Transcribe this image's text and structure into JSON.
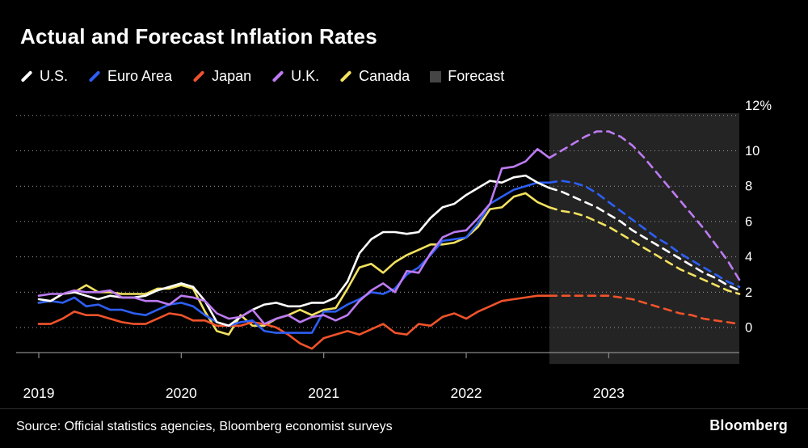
{
  "title": "Actual and Forecast Inflation Rates",
  "source_note": "Source: Official statistics agencies, Bloomberg economist surveys",
  "brand": "Bloomberg",
  "colors": {
    "background": "#000000",
    "text": "#ffffff",
    "grid": "#9a9a9a",
    "axis": "#8a8a8a",
    "forecast_region": "rgba(255,255,255,0.14)"
  },
  "legend": [
    {
      "id": "us",
      "label": "U.S.",
      "color": "#ffffff",
      "swatch": "line"
    },
    {
      "id": "euro-area",
      "label": "Euro Area",
      "color": "#2d5ff5",
      "swatch": "line"
    },
    {
      "id": "japan",
      "label": "Japan",
      "color": "#f0532a",
      "swatch": "line"
    },
    {
      "id": "uk",
      "label": "U.K.",
      "color": "#bd7bf2",
      "swatch": "line"
    },
    {
      "id": "canada",
      "label": "Canada",
      "color": "#f3e25f",
      "swatch": "line"
    },
    {
      "id": "forecast",
      "label": "Forecast",
      "color": "#454545",
      "swatch": "box"
    }
  ],
  "chart_data": {
    "type": "line",
    "title": "Actual and Forecast Inflation Rates",
    "unit": "percent, year-over-year",
    "x_range": [
      "2019-01",
      "2023-12"
    ],
    "x_tick_labels": [
      "2019",
      "2020",
      "2021",
      "2022",
      "2023"
    ],
    "y_ticks": [
      12,
      10,
      8,
      6,
      4,
      2,
      0
    ],
    "y_tick_labels": [
      "12%",
      "10",
      "8",
      "6",
      "4",
      "2",
      "0"
    ],
    "ylim": [
      -1.6,
      12.4
    ],
    "grid": "dotted-horizontal",
    "legend_position": "top",
    "forecast_start_index": 43,
    "forecast_note": "Values from index 43 (Aug 2022) onward are forecasts, drawn dashed over shaded region",
    "series": [
      {
        "id": "us",
        "name": "U.S.",
        "color": "#ffffff",
        "values": [
          1.6,
          1.5,
          1.9,
          2.0,
          1.8,
          1.6,
          1.8,
          1.7,
          1.7,
          1.8,
          2.1,
          2.3,
          2.5,
          2.3,
          1.5,
          0.3,
          0.1,
          0.6,
          1.0,
          1.3,
          1.4,
          1.2,
          1.2,
          1.4,
          1.4,
          1.7,
          2.6,
          4.2,
          5.0,
          5.4,
          5.4,
          5.3,
          5.4,
          6.2,
          6.8,
          7.0,
          7.5,
          7.9,
          8.3,
          8.2,
          8.5,
          8.6,
          8.2,
          7.9,
          7.7,
          7.4,
          7.1,
          6.8,
          6.4,
          6.0,
          5.5,
          5.1,
          4.7,
          4.3,
          3.9,
          3.5,
          3.1,
          2.8,
          2.4,
          2.1
        ]
      },
      {
        "id": "euro-area",
        "name": "Euro Area",
        "color": "#2d5ff5",
        "values": [
          1.4,
          1.5,
          1.4,
          1.7,
          1.2,
          1.3,
          1.0,
          1.0,
          0.8,
          0.7,
          1.0,
          1.3,
          1.4,
          1.2,
          0.7,
          0.3,
          0.1,
          0.3,
          0.4,
          -0.2,
          -0.3,
          -0.3,
          -0.3,
          -0.3,
          0.9,
          0.9,
          1.3,
          1.6,
          2.0,
          1.9,
          2.2,
          3.0,
          3.4,
          4.1,
          4.9,
          5.0,
          5.1,
          5.9,
          7.0,
          7.4,
          7.8,
          8.0,
          8.2,
          8.2,
          8.3,
          8.2,
          8.0,
          7.6,
          7.1,
          6.6,
          6.1,
          5.6,
          5.1,
          4.7,
          4.2,
          3.8,
          3.4,
          3.0,
          2.6,
          2.3
        ]
      },
      {
        "id": "japan",
        "name": "Japan",
        "color": "#f0532a",
        "values": [
          0.2,
          0.2,
          0.5,
          0.9,
          0.7,
          0.7,
          0.5,
          0.3,
          0.2,
          0.2,
          0.5,
          0.8,
          0.7,
          0.4,
          0.4,
          0.1,
          0.1,
          0.1,
          0.3,
          0.2,
          0.0,
          -0.4,
          -0.9,
          -1.2,
          -0.6,
          -0.4,
          -0.2,
          -0.4,
          -0.1,
          0.2,
          -0.3,
          -0.4,
          0.2,
          0.1,
          0.6,
          0.8,
          0.5,
          0.9,
          1.2,
          1.5,
          1.6,
          1.7,
          1.8,
          1.8,
          1.8,
          1.8,
          1.8,
          1.8,
          1.8,
          1.7,
          1.6,
          1.4,
          1.2,
          1.0,
          0.8,
          0.7,
          0.5,
          0.4,
          0.3,
          0.2
        ]
      },
      {
        "id": "uk",
        "name": "U.K.",
        "color": "#bd7bf2",
        "values": [
          1.8,
          1.9,
          1.9,
          2.1,
          2.0,
          2.0,
          2.1,
          1.7,
          1.7,
          1.5,
          1.5,
          1.3,
          1.8,
          1.7,
          1.5,
          0.8,
          0.5,
          0.6,
          1.0,
          0.2,
          0.5,
          0.7,
          0.3,
          0.6,
          0.7,
          0.4,
          0.7,
          1.5,
          2.1,
          2.5,
          2.0,
          3.2,
          3.1,
          4.2,
          5.1,
          5.4,
          5.5,
          6.2,
          7.0,
          9.0,
          9.1,
          9.4,
          10.1,
          9.6,
          10.0,
          10.4,
          10.8,
          11.1,
          11.1,
          10.8,
          10.3,
          9.6,
          8.8,
          8.0,
          7.2,
          6.4,
          5.6,
          4.7,
          3.8,
          2.7
        ]
      },
      {
        "id": "canada",
        "name": "Canada",
        "color": "#f3e25f",
        "values": [
          1.4,
          1.5,
          1.9,
          2.0,
          2.4,
          2.0,
          2.0,
          1.9,
          1.9,
          1.9,
          2.2,
          2.2,
          2.4,
          2.2,
          0.9,
          -0.2,
          -0.4,
          0.7,
          0.1,
          0.1,
          0.5,
          0.7,
          1.0,
          0.7,
          1.0,
          1.1,
          2.2,
          3.4,
          3.6,
          3.1,
          3.7,
          4.1,
          4.4,
          4.7,
          4.7,
          4.8,
          5.1,
          5.7,
          6.7,
          6.8,
          7.4,
          7.6,
          7.1,
          6.8,
          6.6,
          6.5,
          6.3,
          6.0,
          5.7,
          5.3,
          4.9,
          4.5,
          4.1,
          3.7,
          3.3,
          3.0,
          2.7,
          2.4,
          2.1,
          1.9
        ]
      }
    ]
  }
}
